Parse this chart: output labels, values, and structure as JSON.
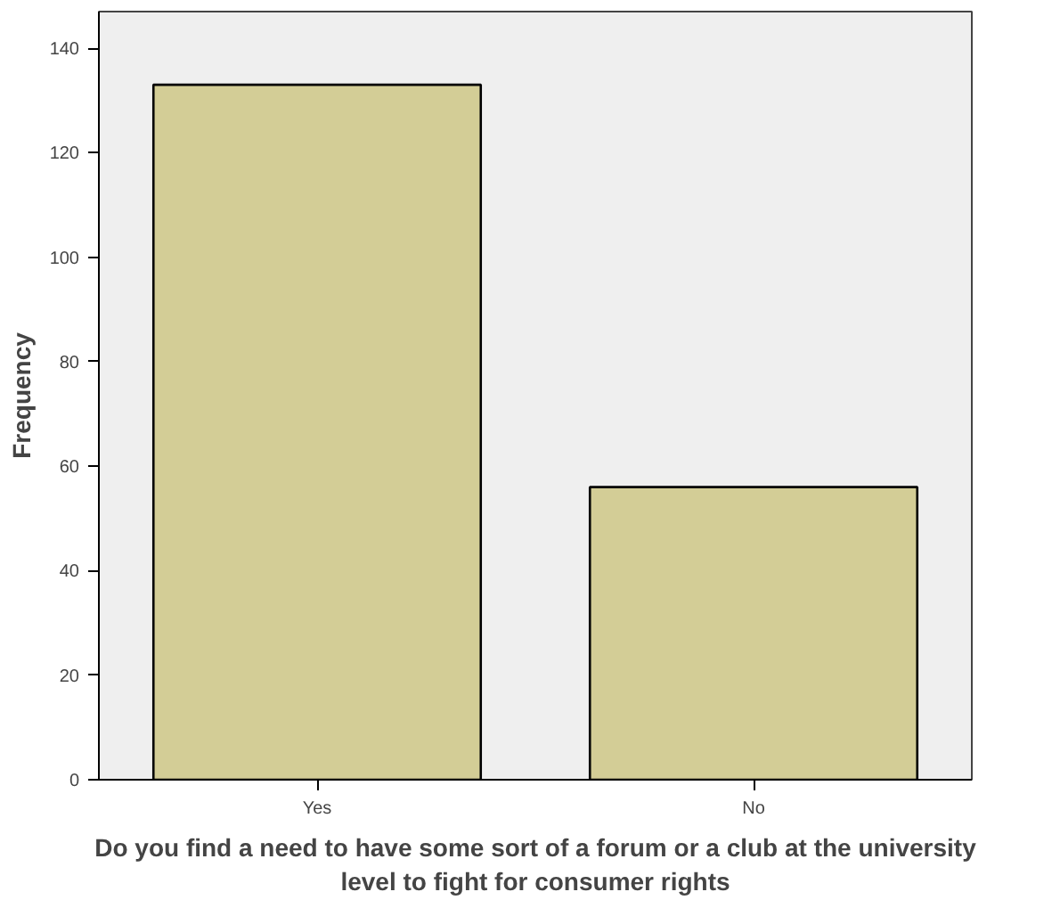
{
  "chart_data": {
    "type": "bar",
    "xlabel": "Do you find a need to have some sort of a forum or a club at the university level to fight for consumer rights",
    "ylabel": "Frequency",
    "categories": [
      "Yes",
      "No"
    ],
    "values": [
      133,
      56
    ],
    "color": "#d3cd96",
    "ylim": [
      0,
      147
    ],
    "yticks": [
      0,
      20,
      40,
      60,
      80,
      100,
      120,
      140
    ],
    "grid": false
  }
}
